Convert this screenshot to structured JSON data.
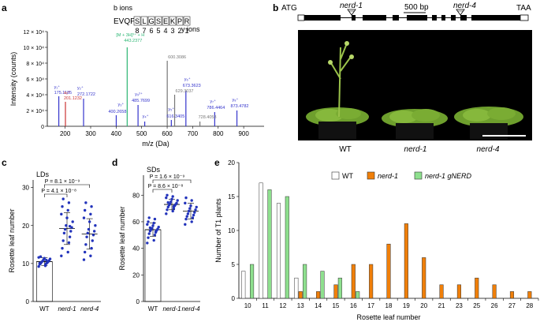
{
  "panel_labels": {
    "a": "a",
    "b": "b",
    "c": "c",
    "d": "d",
    "e": "e"
  },
  "panel_a": {
    "peptide": {
      "b_ions_label": "b ions",
      "y_ions_label": "y ions",
      "prefix": "EVQP",
      "residues": [
        "S",
        "L",
        "G",
        "S",
        "E",
        "K",
        "P",
        "R"
      ],
      "y_numbers": [
        "8",
        "7",
        "6",
        "5",
        "4",
        "3",
        "2",
        "1"
      ]
    },
    "labels": [
      {
        "text": "[M + 3H]³⁺ + H",
        "color": "#2bb673"
      },
      {
        "text": "443.2377",
        "color": "#2bb673"
      },
      {
        "text": "600.3086",
        "color": "#777777"
      },
      {
        "text": "629.3037",
        "color": "#777777"
      },
      {
        "text": "728.4053",
        "color": "#777777"
      },
      {
        "text": "y₁⁺",
        "color": "#3333cc"
      },
      {
        "text": "175.1185",
        "color": "#3333cc"
      },
      {
        "text": "a₂⁺",
        "color": "#cc3333"
      },
      {
        "text": "201.1232",
        "color": "#cc3333"
      },
      {
        "text": "y₂⁺",
        "color": "#3333cc"
      },
      {
        "text": "272.1722",
        "color": "#3333cc"
      },
      {
        "text": "y₃⁺",
        "color": "#3333cc"
      },
      {
        "text": "400.2658",
        "color": "#3333cc"
      },
      {
        "text": "y₉²⁺",
        "color": "#3333cc"
      },
      {
        "text": "485.7699",
        "color": "#3333cc"
      },
      {
        "text": "y₄⁺",
        "color": "#3333cc"
      },
      {
        "text": "y₅⁺",
        "color": "#3333cc"
      },
      {
        "text": "616.3405",
        "color": "#3333cc"
      },
      {
        "text": "y₆⁺",
        "color": "#3333cc"
      },
      {
        "text": "673.3623",
        "color": "#3333cc"
      },
      {
        "text": "y₇⁺",
        "color": "#3333cc"
      },
      {
        "text": "786.4464",
        "color": "#3333cc"
      },
      {
        "text": "y₈⁺",
        "color": "#3333cc"
      },
      {
        "text": "873.4782",
        "color": "#3333cc"
      }
    ]
  },
  "panel_b": {
    "atg": "ATG",
    "taa": "TAA",
    "nerd1": "nerd-1",
    "nerd4": "nerd-4",
    "scale": "500 bp",
    "photo_labels": [
      "WT",
      "nerd-1",
      "nerd-4"
    ]
  },
  "chart_data": [
    {
      "panel": "a",
      "type": "bar",
      "xlabel": "m/z (Da)",
      "ylabel": "Intensity (counts)",
      "xlim": [
        130,
        980
      ],
      "ylim": [
        0,
        120000
      ],
      "xticks": [
        "200",
        "300",
        "400",
        "500",
        "600",
        "700",
        "800",
        "900"
      ],
      "yticks": [
        "0",
        "2 × 10⁴",
        "4 × 10⁴",
        "6 × 10⁴",
        "8 × 10⁴",
        "10 × 10⁴",
        "12 × 10⁴"
      ],
      "peaks": [
        {
          "mz": 175.1,
          "intensity": 38000,
          "color": "#3333cc"
        },
        {
          "mz": 201.1,
          "intensity": 31000,
          "color": "#cc3333"
        },
        {
          "mz": 272.2,
          "intensity": 35000,
          "color": "#3333cc"
        },
        {
          "mz": 400.3,
          "intensity": 14000,
          "color": "#3333cc"
        },
        {
          "mz": 443.2,
          "intensity": 100000,
          "color": "#2bb673"
        },
        {
          "mz": 485.8,
          "intensity": 27000,
          "color": "#3333cc"
        },
        {
          "mz": 512.0,
          "intensity": 6000,
          "color": "#3333cc"
        },
        {
          "mz": 600.3,
          "intensity": 83000,
          "color": "#777777"
        },
        {
          "mz": 616.3,
          "intensity": 8000,
          "color": "#3333cc"
        },
        {
          "mz": 629.3,
          "intensity": 40000,
          "color": "#777777"
        },
        {
          "mz": 673.4,
          "intensity": 45000,
          "color": "#3333cc"
        },
        {
          "mz": 728.4,
          "intensity": 6000,
          "color": "#777777"
        },
        {
          "mz": 786.4,
          "intensity": 18000,
          "color": "#3333cc"
        },
        {
          "mz": 873.5,
          "intensity": 20000,
          "color": "#3333cc"
        }
      ]
    },
    {
      "panel": "c",
      "type": "scatter",
      "title": "LDs",
      "ylabel": "Rosette leaf number",
      "categories": [
        "WT",
        "nerd-1",
        "nerd-4"
      ],
      "ylim": [
        0,
        32
      ],
      "yticks": [
        "0",
        "10",
        "20",
        "30"
      ],
      "means": [
        10.5,
        19.2,
        17.8
      ],
      "sds": [
        1.0,
        4.2,
        4.0
      ],
      "points": [
        [
          9.2,
          9.6,
          9.8,
          10,
          10,
          10.2,
          10.4,
          10.5,
          10.6,
          10.8,
          11,
          11.2,
          11.4,
          11.6,
          9.4,
          10.1,
          10.9,
          11.8
        ],
        [
          12,
          13,
          14,
          15.5,
          16,
          17,
          18,
          18.5,
          19,
          19.5,
          20,
          21,
          22,
          23,
          24,
          25,
          26,
          27,
          19.8
        ],
        [
          11,
          12,
          13,
          14,
          15,
          16,
          17,
          17.5,
          18,
          18.5,
          19,
          20,
          21,
          22,
          23,
          24,
          25,
          26
        ]
      ],
      "significance": [
        "P = 8.1 × 10⁻⁹",
        "P = 4.1 × 10⁻⁸"
      ]
    },
    {
      "panel": "d",
      "type": "scatter",
      "title": "SDs",
      "ylabel": "Rosette leaf number",
      "categories": [
        "WT",
        "nerd-1",
        "nerd-4"
      ],
      "ylim": [
        0,
        95
      ],
      "yticks": [
        "0",
        "20",
        "40",
        "60",
        "80"
      ],
      "means": [
        54,
        73,
        68
      ],
      "sds": [
        5,
        4,
        6
      ],
      "points": [
        [
          44,
          46,
          48,
          50,
          51,
          52,
          53,
          53.5,
          54,
          54.5,
          55,
          56,
          57,
          58,
          59,
          60,
          62,
          63,
          52.5,
          55.5
        ],
        [
          66,
          68,
          69,
          70,
          71,
          72,
          72.5,
          73,
          73.5,
          74,
          75,
          76,
          77,
          78,
          79,
          80,
          71.5,
          74.5
        ],
        [
          58,
          60,
          62,
          63,
          64,
          65,
          66,
          67,
          68,
          69,
          70,
          71,
          72,
          74,
          76,
          78
        ]
      ],
      "significance": [
        "P = 1.6 × 10⁻⁹",
        "P = 8.6 × 10⁻⁸"
      ]
    },
    {
      "panel": "e",
      "type": "bar",
      "xlabel": "Rosette leaf number",
      "ylabel": "Number of T1 plants",
      "ylim": [
        0,
        20
      ],
      "yticks": [
        "0",
        "5",
        "10",
        "15",
        "20"
      ],
      "categories": [
        "10",
        "11",
        "12",
        "13",
        "14",
        "15",
        "16",
        "17",
        "18",
        "19",
        "20",
        "21",
        "23",
        "25",
        "26",
        "27",
        "28"
      ],
      "series": [
        {
          "name": "WT",
          "color": "#ffffff",
          "values": [
            4,
            17,
            14,
            3,
            0,
            0,
            0,
            0,
            0,
            0,
            0,
            0,
            0,
            0,
            0,
            0,
            0
          ]
        },
        {
          "name": "nerd-1",
          "color": "#f07f09",
          "values": [
            0,
            0,
            0,
            1,
            1,
            2,
            5,
            5,
            8,
            11,
            6,
            2,
            2,
            3,
            2,
            1,
            1
          ]
        },
        {
          "name": "nerd-1 gNERD",
          "color": "#8ee08e",
          "values": [
            5,
            16,
            15,
            5,
            4,
            3,
            1,
            0,
            0,
            0,
            0,
            0,
            0,
            0,
            0,
            0,
            0
          ]
        }
      ]
    }
  ]
}
